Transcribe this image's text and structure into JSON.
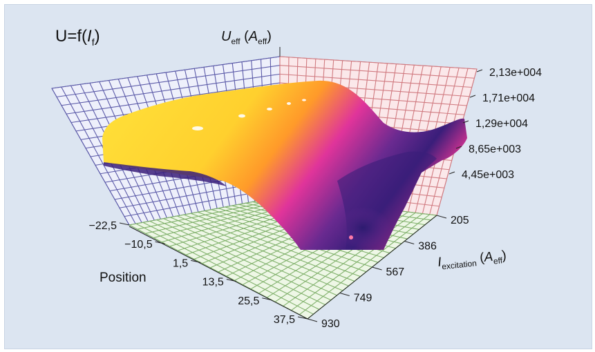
{
  "chart_data": {
    "type": "surface3d",
    "title": "U=f(I_f)",
    "title_parts": {
      "main": "U=f(",
      "var": "I",
      "sub": "f",
      "close": ")"
    },
    "zaxis": {
      "label_main": "U",
      "label_sub": "eff",
      "unit_main": "A",
      "unit_sub": "eff",
      "ticks": [
        "2,13e+004",
        "1,71e+004",
        "1,29e+004",
        "8,65e+003",
        "4,45e+003"
      ],
      "tick_values": [
        21300,
        17100,
        12900,
        8650,
        4450
      ],
      "range": [
        0,
        21300
      ]
    },
    "xaxis": {
      "label_main": "I",
      "label_sub": "excitation",
      "unit_main": "A",
      "unit_sub": "eff",
      "ticks": [
        "205",
        "386",
        "567",
        "749",
        "930"
      ],
      "tick_values": [
        205,
        386,
        567,
        749,
        930
      ]
    },
    "yaxis": {
      "label": "Position",
      "ticks": [
        "−22,5",
        "−10,5",
        "1,5",
        "13,5",
        "25,5",
        "37,5"
      ],
      "tick_values": [
        -22.5,
        -10.5,
        1.5,
        13.5,
        25.5,
        37.5
      ]
    },
    "surface_profile": {
      "description_values_in_z_units": true,
      "position": [
        -22.5,
        -10.5,
        1.5,
        13.5,
        25.5,
        37.5
      ],
      "peak_value_by_position": [
        17000,
        20000,
        21300,
        20500,
        18000,
        16500
      ]
    },
    "colors": {
      "high": "#ffe83a",
      "mid_high": "#ff9a2a",
      "mid": "#e0349a",
      "low": "#5a2a8c",
      "lowest": "#2a1a6e",
      "back_grid": "#5b5aa8",
      "back_grid_bg": "#eef0fb",
      "right_grid": "#d07a80",
      "right_grid_bg": "#fbe8ea",
      "floor_grid": "#7fb06a",
      "floor_grid_bg": "#eef7e6"
    }
  }
}
